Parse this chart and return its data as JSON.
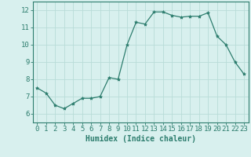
{
  "x": [
    0,
    1,
    2,
    3,
    4,
    5,
    6,
    7,
    8,
    9,
    10,
    11,
    12,
    13,
    14,
    15,
    16,
    17,
    18,
    19,
    20,
    21,
    22,
    23
  ],
  "y": [
    7.5,
    7.2,
    6.5,
    6.3,
    6.6,
    6.9,
    6.9,
    7.0,
    8.1,
    8.0,
    10.0,
    11.3,
    11.2,
    11.9,
    11.9,
    11.7,
    11.6,
    11.65,
    11.65,
    11.85,
    10.5,
    10.0,
    9.0,
    8.3
  ],
  "xlim": [
    -0.5,
    23.5
  ],
  "ylim": [
    5.5,
    12.5
  ],
  "yticks": [
    6,
    7,
    8,
    9,
    10,
    11,
    12
  ],
  "xticks": [
    0,
    1,
    2,
    3,
    4,
    5,
    6,
    7,
    8,
    9,
    10,
    11,
    12,
    13,
    14,
    15,
    16,
    17,
    18,
    19,
    20,
    21,
    22,
    23
  ],
  "xlabel": "Humidex (Indice chaleur)",
  "line_color": "#2d7d6e",
  "marker": "*",
  "marker_size": 3,
  "bg_color": "#d8f0ee",
  "grid_color": "#b8dcd8",
  "axis_color": "#2d7d6e",
  "tick_color": "#2d7d6e",
  "label_color": "#2d7d6e",
  "xlabel_fontsize": 7,
  "tick_fontsize": 6.5
}
